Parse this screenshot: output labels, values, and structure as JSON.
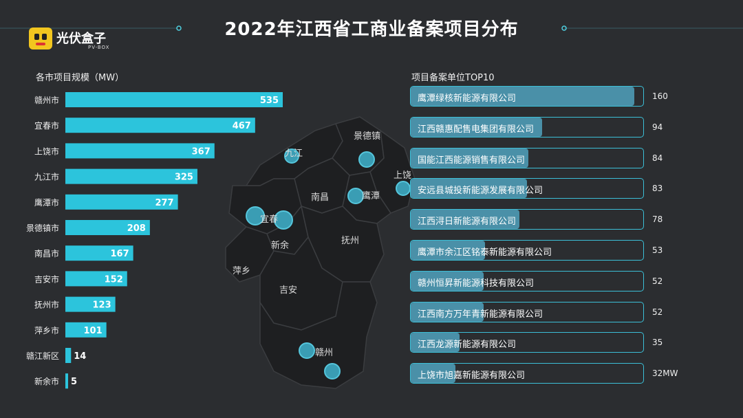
{
  "title": "2022年江西省工商业备案项目分布",
  "logo": {
    "text": "光伏盒子",
    "sub": "PV-BOX"
  },
  "chart_data": [
    {
      "type": "bar",
      "orientation": "horizontal",
      "title": "各市项目规模（MW）",
      "categories": [
        "赣州市",
        "宜春市",
        "上饶市",
        "九江市",
        "鹰潭市",
        "景德镇市",
        "南昌市",
        "吉安市",
        "抚州市",
        "萍乡市",
        "赣江新区",
        "新余市"
      ],
      "values": [
        535,
        467,
        367,
        325,
        277,
        208,
        167,
        152,
        123,
        101,
        14,
        5
      ],
      "color": "#2cc4dc"
    },
    {
      "type": "bar",
      "orientation": "horizontal",
      "title": "项目备案单位TOP10",
      "categories": [
        "鹰潭绿核新能源有限公司",
        "江西赣惠配售电集团有限公司",
        "国能江西能源销售有限公司",
        "安远县城投新能源发展有限公司",
        "江西浔日新能源有限公司",
        "鹰潭市余江区铭泰新能源有限公司",
        "赣州恒昇新能源科技有限公司",
        "江西南方万年青新能源有限公司",
        "江西龙源新能源有限公司",
        "上饶市旭嘉新能源有限公司"
      ],
      "values": [
        160,
        94,
        84,
        83,
        78,
        53,
        52,
        52,
        35,
        32
      ],
      "value_labels": [
        "160",
        "94",
        "84",
        "83",
        "78",
        "53",
        "52",
        "52",
        "35",
        "32MW"
      ],
      "color": "#4a90a8"
    }
  ],
  "map": {
    "labels": [
      "九江",
      "景德镇",
      "上饶",
      "南昌",
      "鹰潭",
      "宜春",
      "新余",
      "抚州",
      "萍乡",
      "吉安",
      "赣州"
    ]
  },
  "colors": {
    "background": "#2b2d30",
    "accent": "#2cc4dc",
    "marker": "#3a9db4"
  }
}
